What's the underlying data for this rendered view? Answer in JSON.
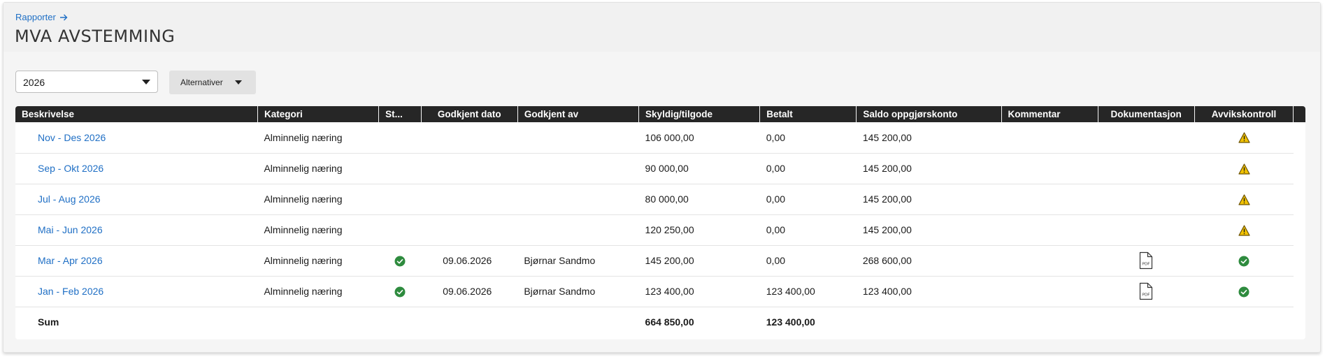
{
  "breadcrumb": {
    "label": "Rapporter"
  },
  "page": {
    "title": "MVA AVSTEMMING"
  },
  "filters": {
    "year": {
      "value": "2026"
    },
    "options_button": {
      "label": "Alternativer"
    }
  },
  "table": {
    "columns": [
      "Beskrivelse",
      "Kategori",
      "St...",
      "Godkjent dato",
      "Godkjent av",
      "Skyldig/tilgode",
      "Betalt",
      "Saldo oppgjørskonto",
      "Kommentar",
      "Dokumentasjon",
      "Avvikskontroll"
    ],
    "rows": [
      {
        "description": "Nov - Des 2026",
        "category": "Alminnelig næring",
        "status": "",
        "approved_date": "",
        "approved_by": "",
        "owed": "106 000,00",
        "paid": "0,00",
        "balance": "145 200,00",
        "comment": "",
        "documentation": "",
        "deviation": "warning"
      },
      {
        "description": "Sep - Okt 2026",
        "category": "Alminnelig næring",
        "status": "",
        "approved_date": "",
        "approved_by": "",
        "owed": "90 000,00",
        "paid": "0,00",
        "balance": "145 200,00",
        "comment": "",
        "documentation": "",
        "deviation": "warning"
      },
      {
        "description": "Jul - Aug 2026",
        "category": "Alminnelig næring",
        "status": "",
        "approved_date": "",
        "approved_by": "",
        "owed": "80 000,00",
        "paid": "0,00",
        "balance": "145 200,00",
        "comment": "",
        "documentation": "",
        "deviation": "warning"
      },
      {
        "description": "Mai - Jun 2026",
        "category": "Alminnelig næring",
        "status": "",
        "approved_date": "",
        "approved_by": "",
        "owed": "120 250,00",
        "paid": "0,00",
        "balance": "145 200,00",
        "comment": "",
        "documentation": "",
        "deviation": "warning"
      },
      {
        "description": "Mar - Apr 2026",
        "category": "Alminnelig næring",
        "status": "ok",
        "approved_date": "09.06.2026",
        "approved_by": "Bjørnar Sandmo",
        "owed": "145 200,00",
        "paid": "0,00",
        "balance": "268 600,00",
        "comment": "",
        "documentation": "pdf",
        "deviation": "ok"
      },
      {
        "description": "Jan - Feb 2026",
        "category": "Alminnelig næring",
        "status": "ok",
        "approved_date": "09.06.2026",
        "approved_by": "Bjørnar Sandmo",
        "owed": "123 400,00",
        "paid": "123 400,00",
        "balance": "123 400,00",
        "comment": "",
        "documentation": "pdf",
        "deviation": "ok"
      }
    ],
    "sum": {
      "label": "Sum",
      "owed": "664 850,00",
      "paid": "123 400,00"
    }
  },
  "icons": {
    "breadcrumb": "arrow-right-icon",
    "status_ok": "check-circle-icon",
    "warning": "warning-triangle-icon",
    "documentation": "pdf-file-icon"
  },
  "colors": {
    "link": "#1f6fc5",
    "header_bg": "#262626",
    "ok": "#2e8b3e",
    "warning": "#f2c200"
  }
}
